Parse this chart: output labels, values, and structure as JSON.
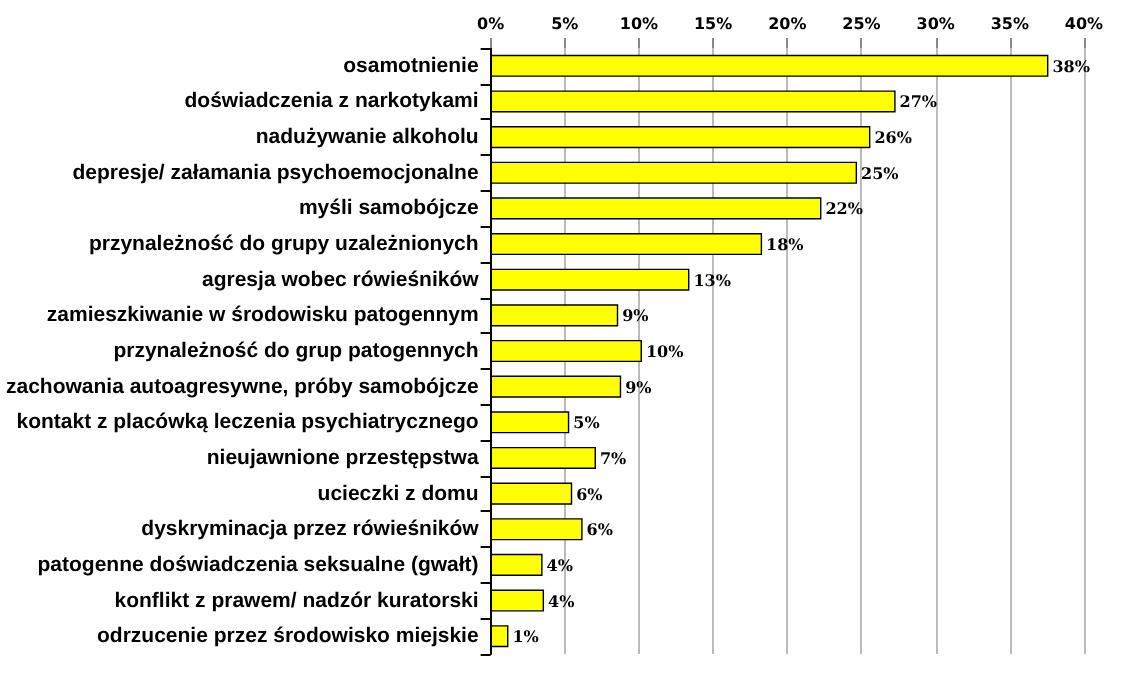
{
  "chart_data": {
    "type": "bar",
    "orientation": "horizontal",
    "categories": [
      "osamotnienie",
      "doświadczenia z narkotykami",
      "nadużywanie alkoholu",
      "depresje/ załamania psychoemocjonalne",
      "myśli samobójcze",
      "przynależność do grupy uzależnionych",
      "agresja wobec rówieśników",
      "zamieszkiwanie w środowisku patogennym",
      "przynależność do grup patogennych",
      "zachowania autoagresywne, próby samobójcze",
      "kontakt z placówką leczenia psychiatrycznego",
      "nieujawnione przestępstwa",
      "ucieczki z domu",
      "dyskryminacja przez rówieśników",
      "patogenne doświadczenia seksualne (gwałt)",
      "konflikt z prawem/ nadzór kuratorski",
      "odrzucenie przez środowisko miejskie"
    ],
    "values": [
      37.6,
      27.3,
      25.6,
      24.7,
      22.3,
      18.3,
      13.4,
      8.6,
      10.2,
      8.8,
      5.3,
      7.1,
      5.5,
      6.2,
      3.5,
      3.6,
      1.2
    ],
    "value_labels": [
      "38%",
      "27%",
      "26%",
      "25%",
      "22%",
      "18%",
      "13%",
      "9%",
      "10%",
      "9%",
      "5%",
      "7%",
      "6%",
      "6%",
      "4%",
      "4%",
      "1%"
    ],
    "color": "#ffff00",
    "xlim": [
      0,
      40
    ],
    "xticks": [
      {
        "value": 0,
        "label": "0%"
      },
      {
        "value": 5,
        "label": "5%"
      },
      {
        "value": 10,
        "label": "10%"
      },
      {
        "value": 15,
        "label": "15%"
      },
      {
        "value": 20,
        "label": "20%"
      },
      {
        "value": 25,
        "label": "25%"
      },
      {
        "value": 30,
        "label": "30%"
      },
      {
        "value": 35,
        "label": "35%"
      },
      {
        "value": 40,
        "label": "40%"
      }
    ],
    "grid": "x"
  }
}
